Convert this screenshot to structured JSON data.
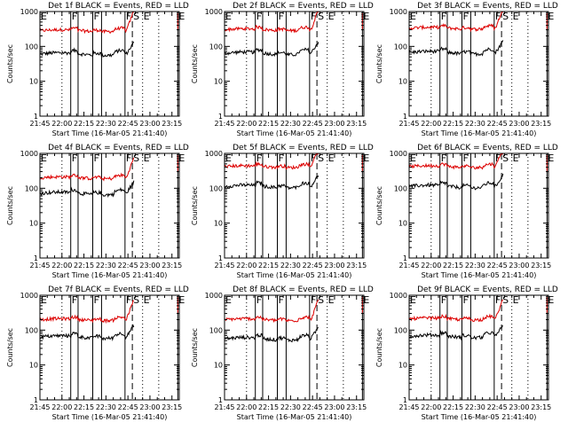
{
  "chart_data": [
    {
      "type": "line",
      "title": "Det 1f BLACK = Events, RED = LLD"
    },
    {
      "type": "line",
      "title": "Det 2f BLACK = Events, RED = LLD"
    },
    {
      "type": "line",
      "title": "Det 3f BLACK = Events, RED = LLD"
    },
    {
      "type": "line",
      "title": "Det 4f BLACK = Events, RED = LLD"
    },
    {
      "type": "line",
      "title": "Det 5f BLACK = Events, RED = LLD"
    },
    {
      "type": "line",
      "title": "Det 6f BLACK = Events, RED = LLD"
    },
    {
      "type": "line",
      "title": "Det 7f BLACK = Events, RED = LLD"
    },
    {
      "type": "line",
      "title": "Det 8f BLACK = Events, RED = LLD"
    },
    {
      "type": "line",
      "title": "Det 9f BLACK = Events, RED = LLD"
    }
  ],
  "shared": {
    "xlabel": "Start Time (16-Mar-05 21:41:40)",
    "ylabel": "Counts/sec",
    "x_ticks": [
      "21:45",
      "22:00",
      "22:15",
      "22:30",
      "22:45",
      "23:00",
      "23:15"
    ],
    "x_tick_minutes": [
      45,
      60,
      75,
      90,
      105,
      120,
      135
    ],
    "xlim_minutes": [
      45,
      140
    ],
    "y_ticks": [
      "1",
      "10",
      "100",
      "1000"
    ],
    "y_tick_values": [
      1,
      10,
      100,
      1000
    ],
    "y_scale": "log",
    "ylim": [
      1,
      1000
    ],
    "interval_markers": [
      {
        "label": "E",
        "minute": 45,
        "style": "solid"
      },
      {
        "label": "F",
        "minute": 66,
        "style": "solid"
      },
      {
        "label": "F",
        "minute": 81,
        "style": "solid"
      },
      {
        "label": "F",
        "minute": 103,
        "style": "solid"
      },
      {
        "label": "S",
        "minute": 108,
        "style": "dashed"
      },
      {
        "label": "E",
        "minute": 115,
        "style": "dotted"
      },
      {
        "label": "E",
        "minute": 139,
        "style": "solid"
      }
    ],
    "colors": {
      "events": "#000000",
      "lld": "#dd0000",
      "axes": "#000000"
    }
  }
}
